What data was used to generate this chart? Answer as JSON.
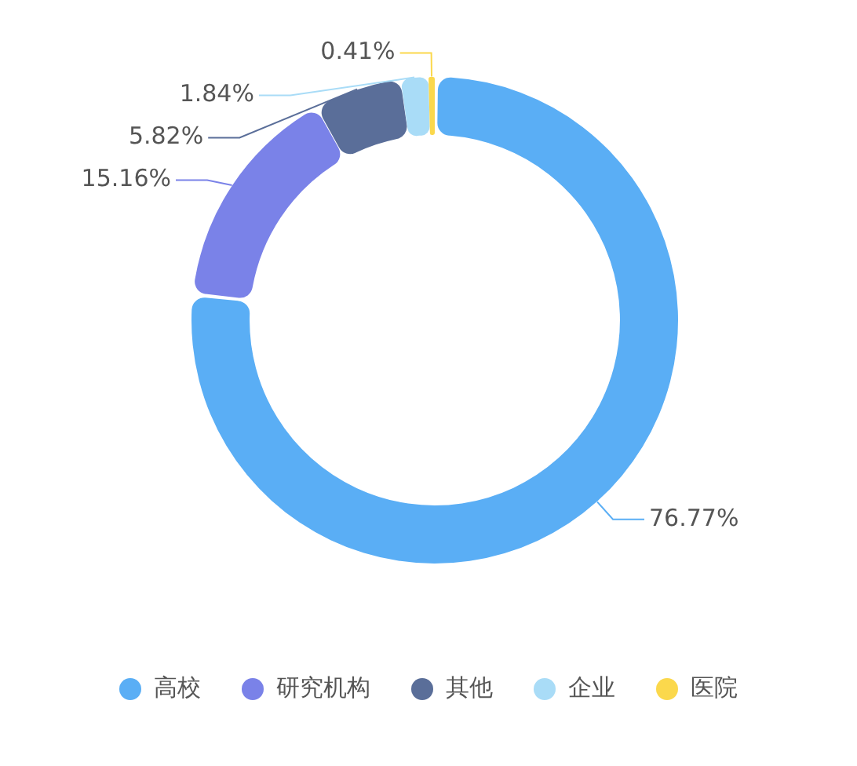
{
  "chart_data": {
    "type": "donut",
    "categories": [
      "高校",
      "研究机构",
      "其他",
      "企业",
      "医院"
    ],
    "values": [
      76.77,
      15.16,
      5.82,
      1.84,
      0.41
    ],
    "value_labels": [
      "76.77%",
      "15.16%",
      "5.82%",
      "1.84%",
      "0.41%"
    ],
    "colors": [
      "#5aaef5",
      "#7a82e8",
      "#5a6e99",
      "#a9dcf7",
      "#fbd84c"
    ],
    "legend": "bottom"
  }
}
